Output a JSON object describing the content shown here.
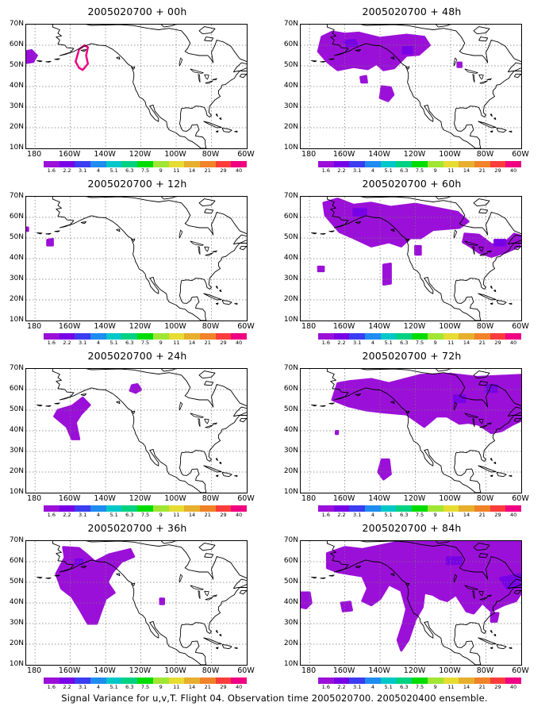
{
  "panels": [
    {
      "id": "p00",
      "title": "2005020700 + 00h",
      "column": 0,
      "row": 0
    },
    {
      "id": "p48",
      "title": "2005020700 + 48h",
      "column": 1,
      "row": 0
    },
    {
      "id": "p12",
      "title": "2005020700 + 12h",
      "column": 0,
      "row": 1
    },
    {
      "id": "p60",
      "title": "2005020700 + 60h",
      "column": 1,
      "row": 1
    },
    {
      "id": "p24",
      "title": "2005020700 + 24h",
      "column": 0,
      "row": 2
    },
    {
      "id": "p72",
      "title": "2005020700 + 72h",
      "column": 1,
      "row": 2
    },
    {
      "id": "p36",
      "title": "2005020700 + 36h",
      "column": 0,
      "row": 3
    },
    {
      "id": "p84",
      "title": "2005020700 + 84h",
      "column": 1,
      "row": 3
    }
  ],
  "latitude_labels": [
    "70N",
    "60N",
    "50N",
    "40N",
    "30N",
    "20N",
    "10N"
  ],
  "longitude_labels": [
    "180",
    "160W",
    "140W",
    "120W",
    "100W",
    "80W",
    "60W"
  ],
  "colorbar": {
    "labels": [
      "1.6",
      "2.2",
      "3.1",
      "4",
      "5.1",
      "6.3",
      "7.5",
      "9",
      "11",
      "14",
      "21",
      "29",
      "40"
    ],
    "colors": [
      "#9b10d8",
      "#7800e6",
      "#3c3cf0",
      "#1f8cf0",
      "#00c8c8",
      "#00d282",
      "#00dc00",
      "#a0e632",
      "#e6dc32",
      "#e6af2d",
      "#f08228",
      "#fa3c3c",
      "#f00082"
    ]
  },
  "map_extent": {
    "lon_min": 175,
    "lon_max": 300,
    "lat_min": 10,
    "lat_max": 70
  },
  "footer": {
    "caption": "Signal Variance for u,v,T. Flight 04. Observation time 2005020700. 2005020400 ensemble."
  }
}
